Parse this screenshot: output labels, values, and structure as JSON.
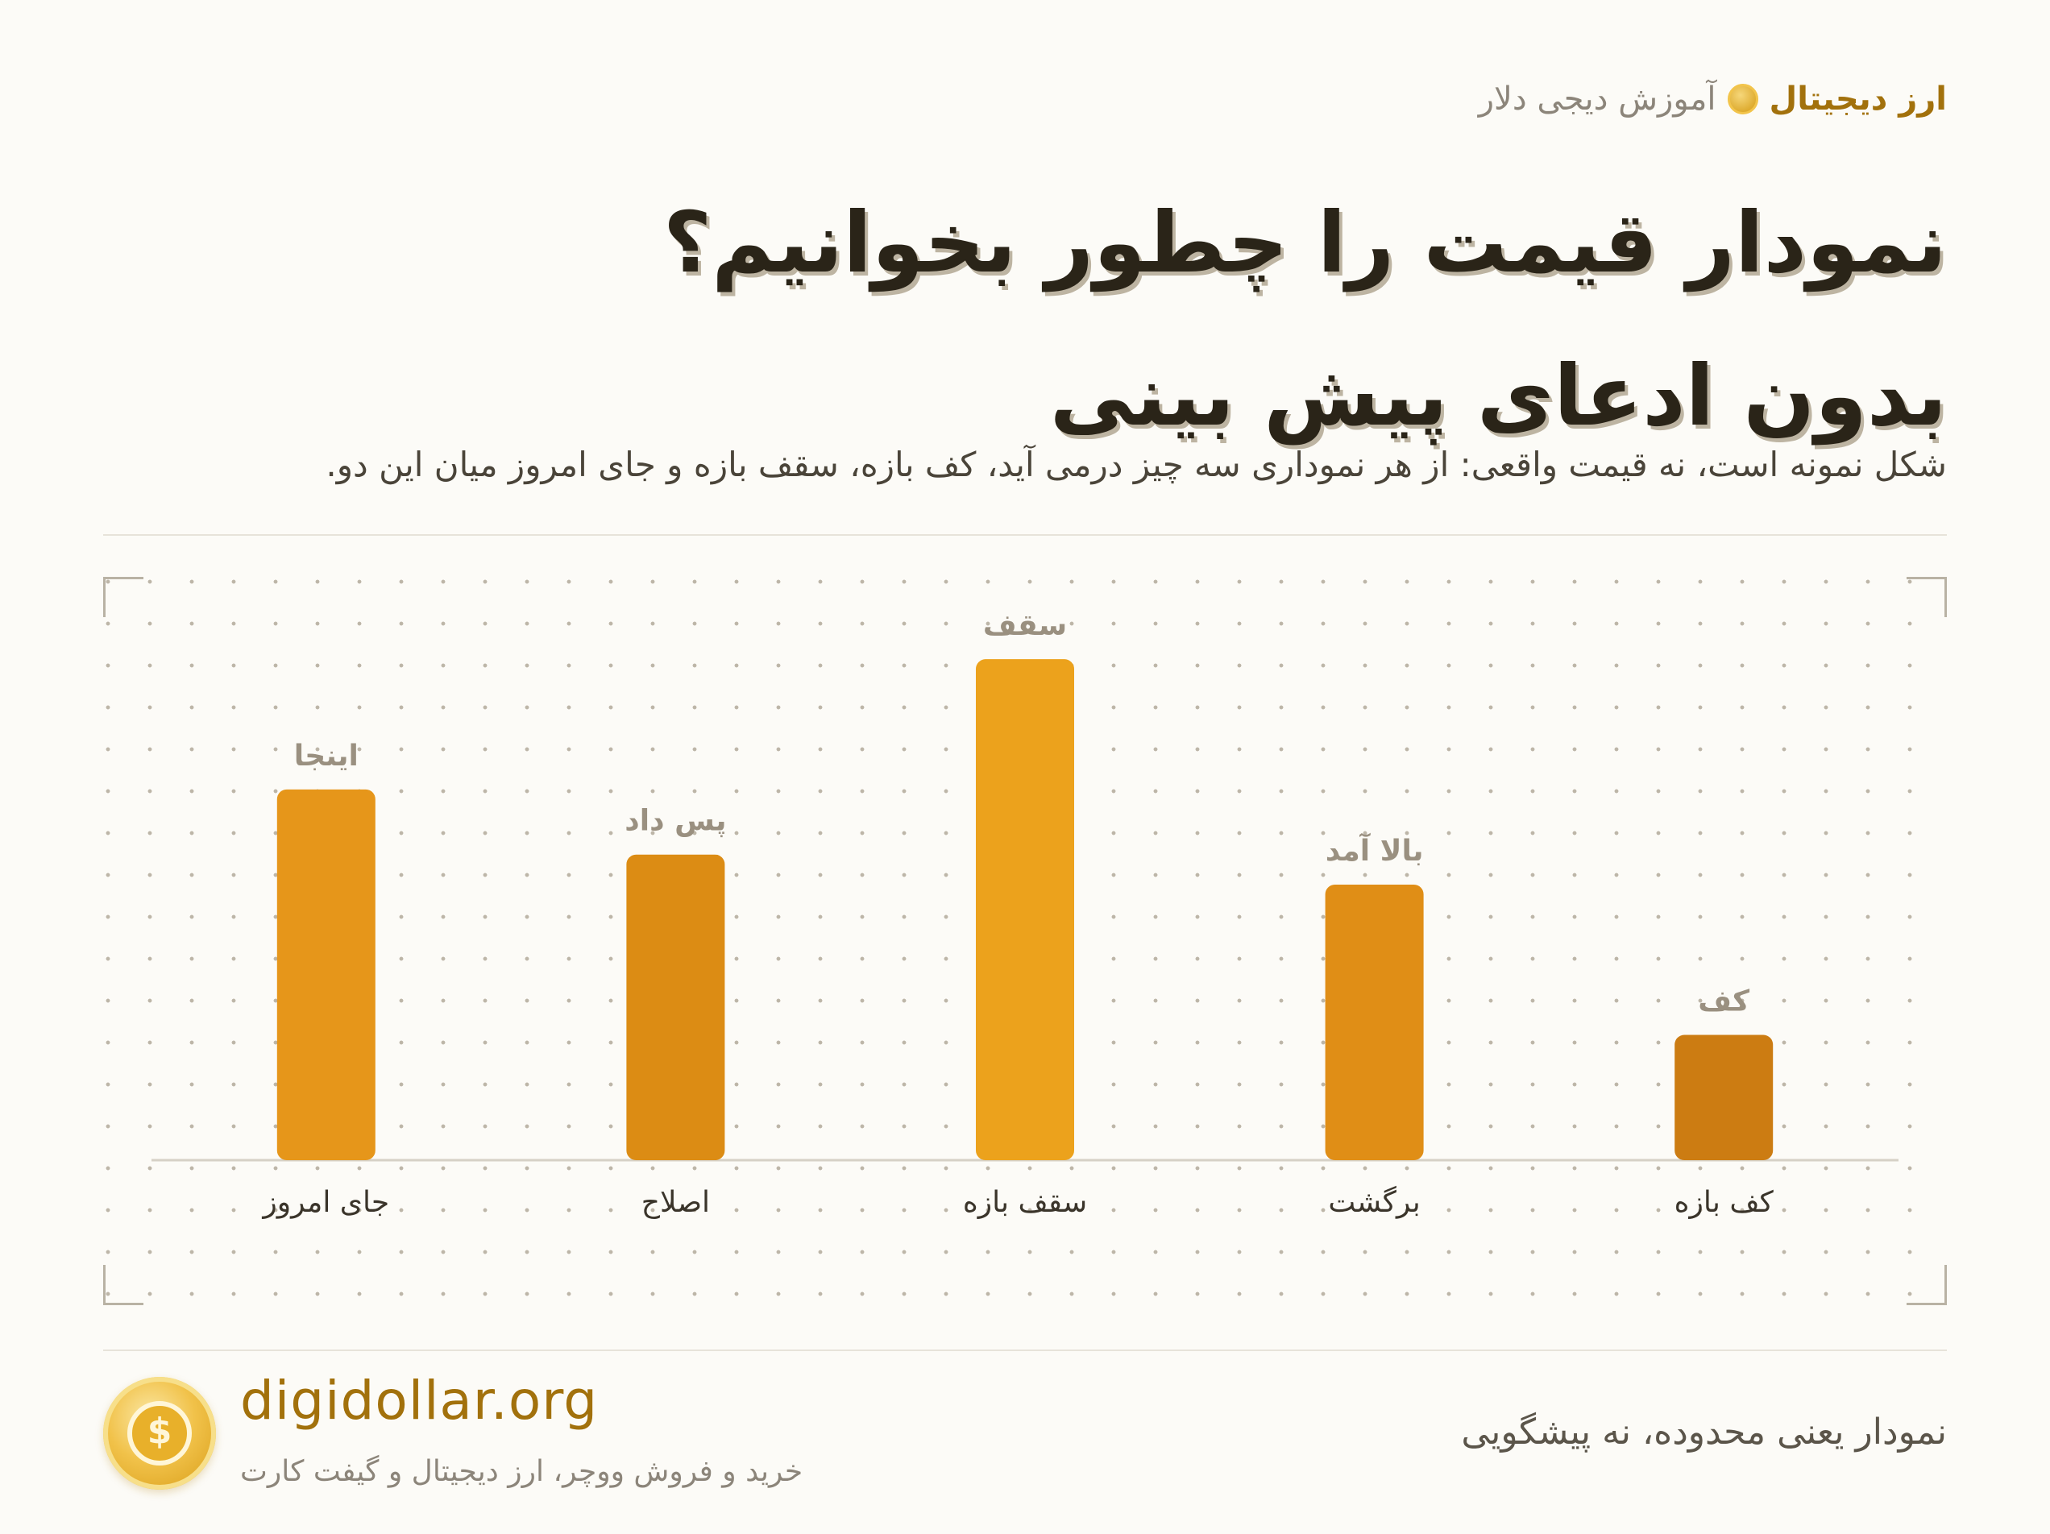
{
  "header": {
    "series": "آموزش دیجی دلار",
    "category": "ارز دیجیتال",
    "title_line1": "نمودار قیمت را چطور بخوانیم؟",
    "title_line2": "بدون ادعای پیش بینی",
    "subtitle": "شکل نمونه است، نه قیمت واقعی: از هر نموداری سه چیز درمی آید، کف بازه، سقف بازه و جای امروز میان این دو."
  },
  "chart_data": {
    "type": "bar",
    "categories": [
      "جای امروز",
      "اصلاح",
      "سقف بازه",
      "برگشت",
      "کف بازه"
    ],
    "values": [
      0.74,
      0.61,
      1.0,
      0.55,
      0.25
    ],
    "data_labels": [
      "اینجا",
      "پس داد",
      "سقف",
      "بالا آمد",
      "کف"
    ],
    "bar_colors": [
      "#e6961a",
      "#dc8c14",
      "#eca21c",
      "#e08e16",
      "#cc7c12"
    ],
    "label_color": "#9a9080",
    "tick_color": "#3a342a",
    "grid": "dots",
    "ylim": [
      0,
      1.1
    ]
  },
  "footer": {
    "site": "digidollar.org",
    "tagline": "خرید و فروش ووچر، ارز دیجیتال و گیفت کارت",
    "note": "نمودار یعنی محدوده، نه پیشگویی"
  },
  "colors": {
    "accent": "#a2710c",
    "background": "#fcfbf7",
    "title": "#2a2418"
  }
}
